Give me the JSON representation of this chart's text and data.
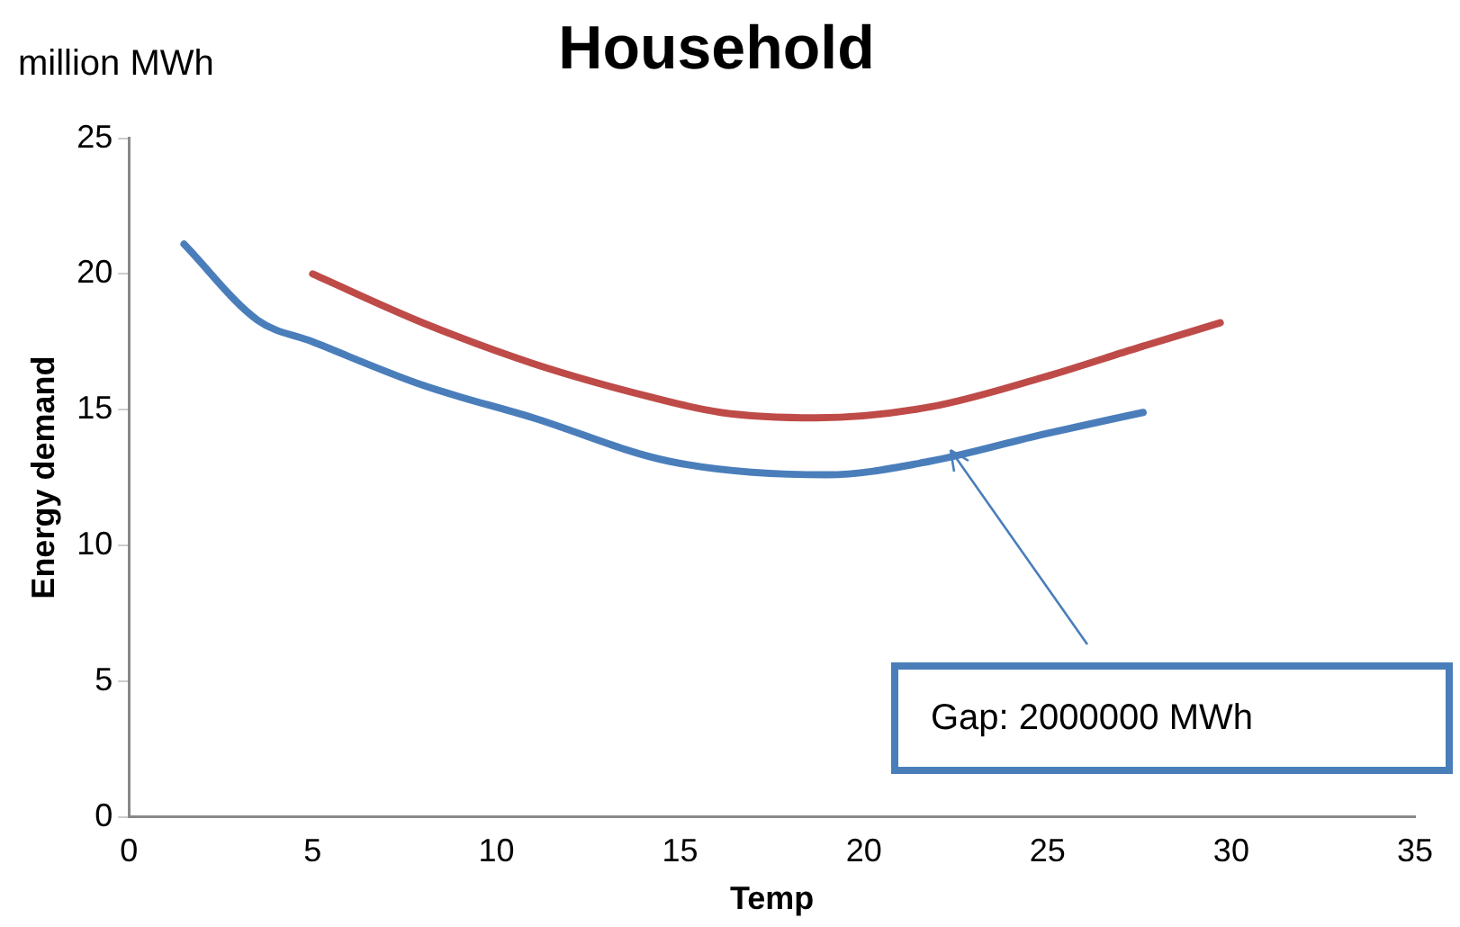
{
  "chart_data": {
    "type": "line",
    "title": "Household",
    "xlabel": "Temp",
    "ylabel": "Energy demand",
    "xlim": [
      0,
      35
    ],
    "xticks": [
      0,
      5,
      10,
      15,
      20,
      25,
      30,
      35
    ],
    "ylim": [
      0,
      25
    ],
    "yticks": [
      0,
      5,
      10,
      15,
      20,
      25
    ],
    "grid": false,
    "legend": false,
    "marker": "none",
    "series": [
      {
        "color": "#4a7ebb",
        "x": [
          1.5,
          3.5,
          5,
          8,
          11,
          14.7,
          19,
          21.8,
          24.9,
          27.6
        ],
        "values": [
          21.1,
          18.3,
          17.5,
          15.9,
          14.7,
          13.1,
          12.6,
          13.1,
          14.1,
          14.9
        ]
      },
      {
        "color": "#be4b48",
        "x": [
          5,
          8,
          11,
          14.1,
          16.1,
          18.7,
          21.8,
          24.9,
          27.5,
          29.7
        ],
        "values": [
          20,
          18.2,
          16.7,
          15.5,
          14.9,
          14.7,
          15.1,
          16.2,
          17.3,
          18.2
        ]
      }
    ],
    "annotations": [
      "million MWh",
      "Gap: 2000000 MWh"
    ]
  }
}
